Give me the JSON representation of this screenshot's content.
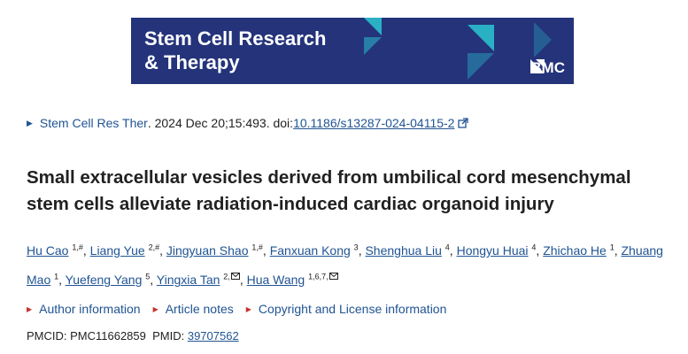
{
  "banner": {
    "journal_title": "Stem Cell Research\n& Therapy",
    "publisher": "BMC",
    "colors": {
      "background": "#24337a",
      "accent": "#2ab0c4"
    }
  },
  "citation": {
    "journal": "Stem Cell Res Ther",
    "details": ". 2024 Dec 20;15:493. doi: ",
    "doi": "10.1186/s13287-024-04115-2"
  },
  "article": {
    "title": "Small extracellular vesicles derived from umbilical cord mesenchymal stem cells alleviate radiation-induced cardiac organoid injury"
  },
  "authors": [
    {
      "name": "Hu Cao",
      "sup": "1,#",
      "email": false
    },
    {
      "name": "Liang Yue",
      "sup": "2,#",
      "email": false
    },
    {
      "name": "Jingyuan Shao",
      "sup": "1,#",
      "email": false
    },
    {
      "name": "Fanxuan Kong",
      "sup": "3",
      "email": false
    },
    {
      "name": "Shenghua Liu",
      "sup": "4",
      "email": false
    },
    {
      "name": "Hongyu Huai",
      "sup": "4",
      "email": false
    },
    {
      "name": "Zhichao He",
      "sup": "1",
      "email": false
    },
    {
      "name": "Zhuang Mao",
      "sup": "1",
      "email": false
    },
    {
      "name": "Yuefeng Yang",
      "sup": "5",
      "email": false
    },
    {
      "name": "Yingxia Tan",
      "sup": "2,",
      "email": true
    },
    {
      "name": "Hua Wang",
      "sup": "1,6,7,",
      "email": true
    }
  ],
  "info_links": [
    "Author information",
    "Article notes",
    "Copyright and License information"
  ],
  "ids": {
    "pmcid_label": "PMCID: PMC11662859",
    "pmid_label": "PMID: ",
    "pmid": "39707562"
  }
}
